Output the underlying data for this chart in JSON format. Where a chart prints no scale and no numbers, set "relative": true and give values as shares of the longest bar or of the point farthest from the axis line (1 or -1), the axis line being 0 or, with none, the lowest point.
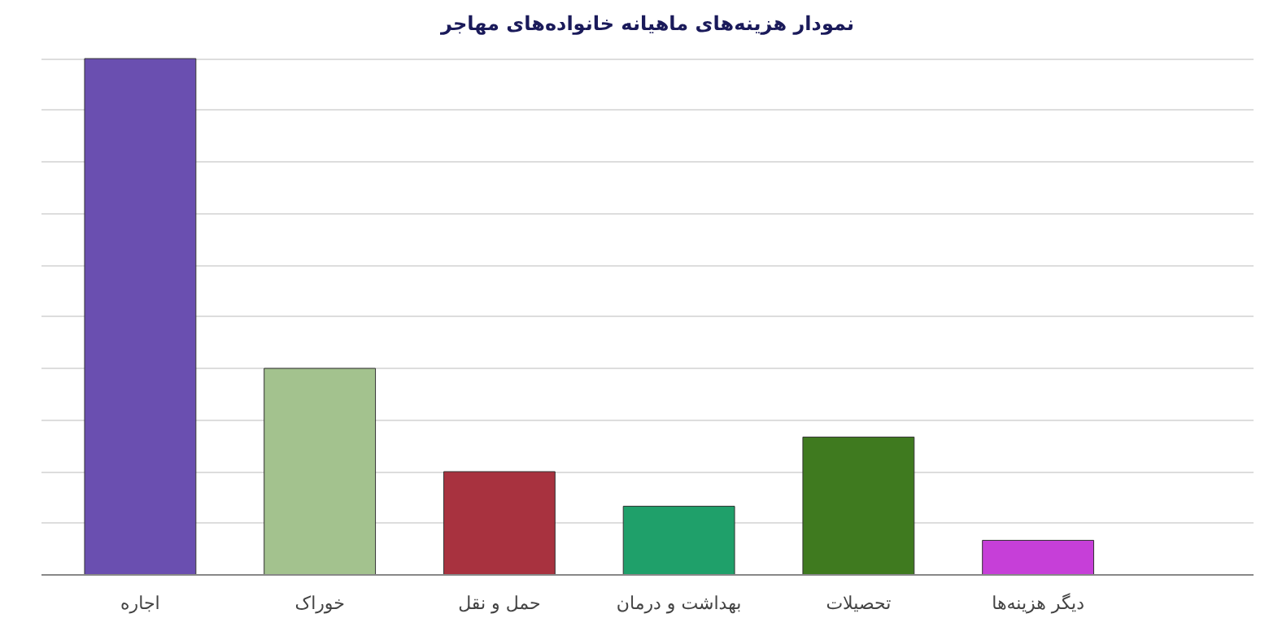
{
  "chart_data": {
    "type": "bar",
    "title": "نمودار هزینه‌های ماهیانه خانواده‌های مهاجر",
    "relative": true,
    "grid": "y",
    "categories": [
      "اجاره",
      "خوراک",
      "حمل و نقل",
      "بهداشت و درمان",
      "تحصیلات",
      "دیگر هزینه‌ها"
    ],
    "values": [
      1,
      0.4,
      0.2,
      0.133,
      0.267,
      0.067
    ],
    "colors": [
      "#6a4fb0",
      "#a3c28e",
      "#a8323f",
      "#1fa06a",
      "#3f7a1f",
      "#c63fd8"
    ]
  }
}
